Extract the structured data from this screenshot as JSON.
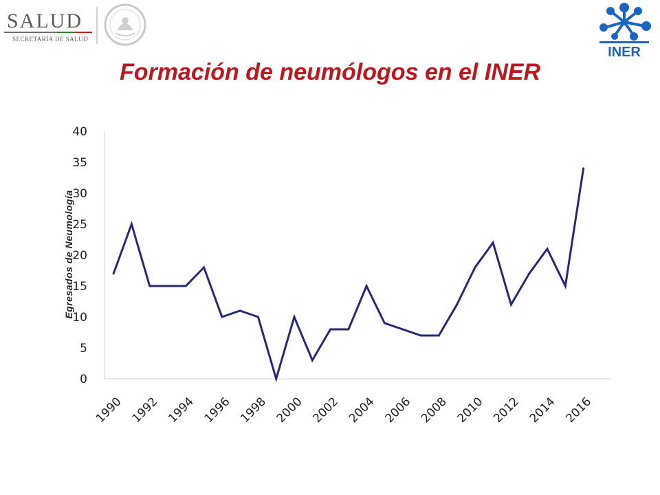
{
  "header": {
    "left_logo_word": "SALUD",
    "left_logo_sub": "SECRETARÍA DE SALUD",
    "seal_name": "mexico-coat-of-arms",
    "right_logo_text": "INER",
    "right_logo_color": "#1a66c2"
  },
  "title": "Formación de neumólogos en el INER",
  "title_color": "#c0161e",
  "chart_data": {
    "type": "line",
    "title": "Formación de neumólogos en el INER",
    "xlabel": "",
    "ylabel": "Egresados de Neumología",
    "ylim": [
      0,
      40
    ],
    "yticks": [
      0,
      5,
      10,
      15,
      20,
      25,
      30,
      35,
      40
    ],
    "xticks": [
      "1990",
      "1992",
      "1994",
      "1996",
      "1998",
      "2000",
      "2002",
      "2004",
      "2006",
      "2008",
      "2010",
      "2012",
      "2014",
      "2016"
    ],
    "x": [
      1990,
      1991,
      1992,
      1993,
      1994,
      1995,
      1996,
      1997,
      1998,
      1999,
      2000,
      2001,
      2002,
      2003,
      2004,
      2005,
      2006,
      2007,
      2008,
      2009,
      2010,
      2011,
      2012,
      2013,
      2014,
      2015,
      2016
    ],
    "xlim": [
      1989.5,
      2017.5
    ],
    "series": [
      {
        "values": [
          17,
          25,
          15,
          15,
          15,
          18,
          10,
          11,
          10,
          0,
          10,
          3,
          8,
          8,
          15,
          9,
          8,
          7,
          7,
          12,
          18,
          22,
          12,
          17,
          21,
          15,
          34
        ],
        "color": "#27287a"
      }
    ],
    "grid": false,
    "legend": "none"
  }
}
